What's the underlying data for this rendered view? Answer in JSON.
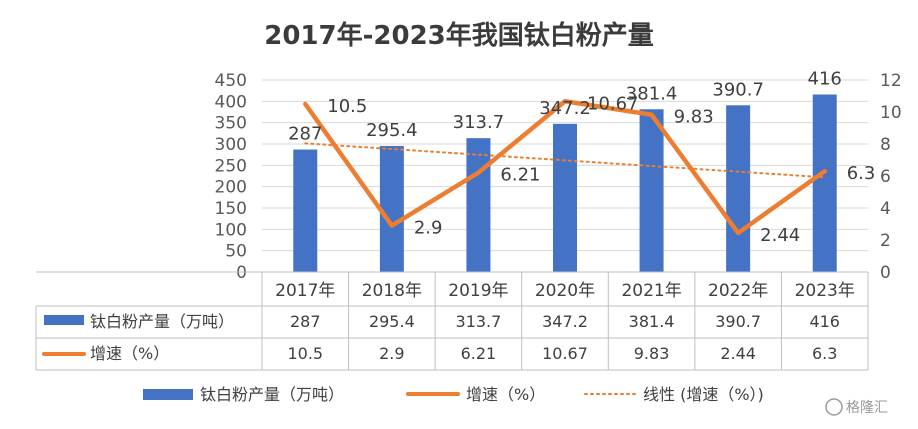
{
  "chart_data": {
    "type": "bar",
    "title": "2017年-2023年我国钛白粉产量",
    "categories": [
      "2017年",
      "2018年",
      "2019年",
      "2020年",
      "2021年",
      "2022年",
      "2023年"
    ],
    "series": [
      {
        "name": "钛白粉产量（万吨）",
        "type": "bar",
        "axis": "left",
        "color": "#4472c4",
        "values": [
          287,
          295.4,
          313.7,
          347.2,
          381.4,
          390.7,
          416
        ],
        "labels": [
          "287",
          "295.4",
          "313.7",
          "347.2",
          "381.4",
          "390.7",
          "416"
        ]
      },
      {
        "name": "增速（%）",
        "type": "line",
        "axis": "right",
        "color": "#ed7d31",
        "values": [
          10.5,
          2.9,
          6.21,
          10.67,
          9.83,
          2.44,
          6.3
        ],
        "labels": [
          "10.5",
          "2.9",
          "6.21",
          "10.67",
          "9.83",
          "2.44",
          "6.3"
        ]
      }
    ],
    "trendline": {
      "name": "线性 (增速（%）)",
      "style": "dotted",
      "color": "#ed7d31",
      "of_series": "增速（%）"
    },
    "y_left": {
      "min": 0,
      "max": 450,
      "ticks": [
        "0",
        "50",
        "100",
        "150",
        "200",
        "250",
        "300",
        "350",
        "400",
        "450"
      ]
    },
    "y_right": {
      "min": 0,
      "max": 12,
      "ticks": [
        "0",
        "2",
        "4",
        "6",
        "8",
        "10",
        "12"
      ]
    },
    "grid": true,
    "data_table": true,
    "legend_position": "bottom",
    "watermark": "格隆汇"
  }
}
